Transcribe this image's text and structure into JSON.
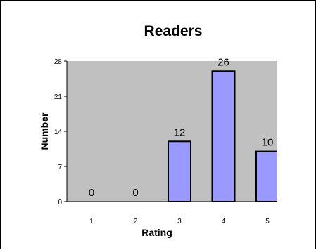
{
  "chart_data": {
    "type": "bar",
    "title": "Readers",
    "xlabel": "Rating",
    "ylabel": "Number",
    "categories": [
      "1",
      "2",
      "3",
      "4",
      "5"
    ],
    "values": [
      0,
      0,
      12,
      26,
      10
    ],
    "data_labels": [
      "0",
      "0",
      "12",
      "26",
      "10"
    ],
    "y_ticks": [
      "0",
      "7",
      "14",
      "21",
      "28"
    ],
    "ylim": [
      0,
      28
    ],
    "grid": false,
    "legend": "none",
    "colors": {
      "plot_background": "#c0c0c0",
      "bar_fill": "#9999ff",
      "bar_stroke": "#000000"
    }
  }
}
